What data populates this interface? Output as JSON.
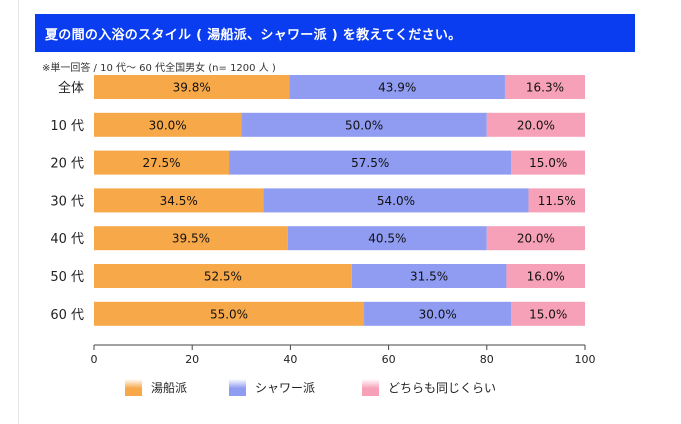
{
  "title": "夏の間の入浴のスタイル ( 湯船派、シャワー派 ) を教えてください。",
  "note": "※単一回答 / 10 代〜 60 代全国男女 (n= 1200 人 )",
  "colors": {
    "title_bg": "#0a3cf0",
    "yubune": "#f7a94a",
    "shower": "#8f9cf2",
    "same": "#f7a1b8"
  },
  "chart_data": {
    "type": "bar",
    "orientation": "horizontal",
    "stacked": true,
    "categories": [
      "全体",
      "10 代",
      "20 代",
      "30 代",
      "40 代",
      "50 代",
      "60 代"
    ],
    "series": [
      {
        "name": "湯船派",
        "values": [
          39.8,
          30.0,
          27.5,
          34.5,
          39.5,
          52.5,
          55.0
        ],
        "labels": [
          "39.8%",
          "30.0%",
          "27.5%",
          "34.5%",
          "39.5%",
          "52.5%",
          "55.0%"
        ]
      },
      {
        "name": "シャワー派",
        "values": [
          43.9,
          50.0,
          57.5,
          54.0,
          40.5,
          31.5,
          30.0
        ],
        "labels": [
          "43.9%",
          "50.0%",
          "57.5%",
          "54.0%",
          "40.5%",
          "31.5%",
          "30.0%"
        ]
      },
      {
        "name": "どちらも同じくらい",
        "values": [
          16.3,
          20.0,
          15.0,
          11.5,
          20.0,
          16.0,
          15.0
        ],
        "labels": [
          "16.3%",
          "20.0%",
          "15.0%",
          "11.5%",
          "20.0%",
          "16.0%",
          "15.0%"
        ]
      }
    ],
    "xlim": [
      0,
      100
    ],
    "xticks": [
      0,
      20,
      40,
      60,
      80,
      100
    ],
    "legend_position": "bottom"
  }
}
